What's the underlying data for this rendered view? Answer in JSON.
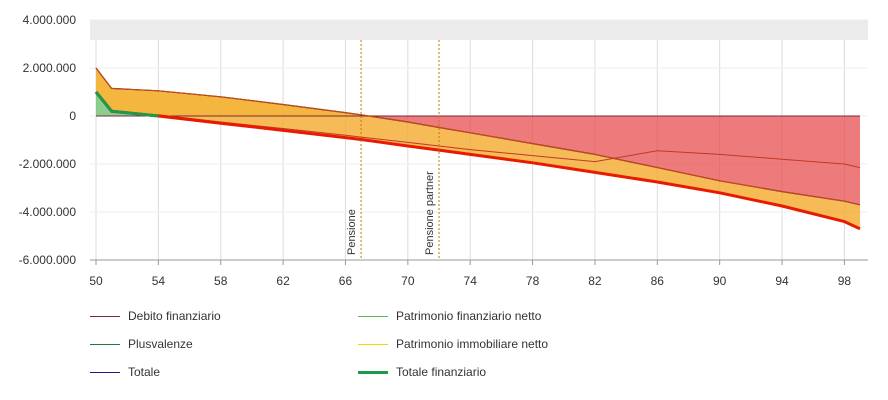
{
  "chart_data": {
    "type": "area",
    "title": "",
    "xlabel": "",
    "ylabel": "",
    "xlim": [
      50,
      99
    ],
    "ylim": [
      -6000000,
      4000000
    ],
    "x_ticks": [
      "50",
      "54",
      "58",
      "62",
      "66",
      "70",
      "74",
      "78",
      "82",
      "86",
      "90",
      "94",
      "98"
    ],
    "y_ticks": [
      "4.000.000",
      "2.000.000",
      "0",
      "-2.000.000",
      "-4.000.000",
      "-6.000.000"
    ],
    "grid": true,
    "legend_position": "bottom-left",
    "markers": [
      {
        "label": "Pensione",
        "x": 67
      },
      {
        "label": "Pensione partner",
        "x": 72
      }
    ],
    "x": [
      50,
      51,
      54,
      58,
      62,
      66,
      67,
      70,
      72,
      74,
      78,
      82,
      86,
      90,
      94,
      98,
      99
    ],
    "series": [
      {
        "name": "Debito finanziario",
        "color": "#d42a2a",
        "values": [
          0,
          0,
          0,
          0,
          0,
          0,
          0,
          0,
          0,
          0,
          0,
          0,
          0,
          0,
          0,
          0,
          0
        ]
      },
      {
        "name": "Patrimonio finanziario netto",
        "color": "#5cb85c",
        "values": [
          980000,
          150000,
          50000,
          -250000,
          -520000,
          -800000,
          -880000,
          -1100000,
          -1250000,
          -1400000,
          -1650000,
          -1900000,
          -1450000,
          -1600000,
          -1800000,
          -2000000,
          -2150000
        ]
      },
      {
        "name": "Plusvalenze",
        "color": "#1e7a3a",
        "values": [
          1000000,
          200000,
          0,
          -300000,
          -600000,
          -900000,
          -980000,
          -1250000,
          -1420000,
          -1600000,
          -1950000,
          -2350000,
          -2750000,
          -3200000,
          -3750000,
          -4400000,
          -4700000
        ]
      },
      {
        "name": "Patrimonio immobiliare netto",
        "color": "#f2d600",
        "values": [
          2000000,
          1150000,
          1050000,
          800000,
          480000,
          140000,
          50000,
          -250000,
          -480000,
          -700000,
          -1150000,
          -1600000,
          -2150000,
          -2700000,
          -3150000,
          -3550000,
          -3700000
        ]
      },
      {
        "name": "Totale",
        "color": "#1a1a80",
        "values": [
          2000000,
          1150000,
          1050000,
          800000,
          480000,
          140000,
          50000,
          -250000,
          -480000,
          -700000,
          -1150000,
          -1600000,
          -2150000,
          -2700000,
          -3150000,
          -3550000,
          -3700000
        ]
      },
      {
        "name": "Totale finanziario",
        "color": "#e81b00",
        "values": [
          1000000,
          200000,
          0,
          -300000,
          -600000,
          -900000,
          -980000,
          -1250000,
          -1420000,
          -1600000,
          -1950000,
          -2350000,
          -2750000,
          -3200000,
          -3750000,
          -4400000,
          -4700000
        ]
      }
    ]
  },
  "legend": [
    {
      "label": "Debito finanziario",
      "color": "#7a2a3a",
      "thick": false
    },
    {
      "label": "Patrimonio finanziario netto",
      "color": "#5cb85c",
      "thick": false
    },
    {
      "label": "Plusvalenze",
      "color": "#1e7a3a",
      "thick": false
    },
    {
      "label": "Patrimonio immobiliare netto",
      "color": "#f2d600",
      "thick": false
    },
    {
      "label": "Totale",
      "color": "#1a1a80",
      "thick": false
    },
    {
      "label": "Totale finanziario",
      "color": "#1a9a4a",
      "thick": true
    }
  ]
}
